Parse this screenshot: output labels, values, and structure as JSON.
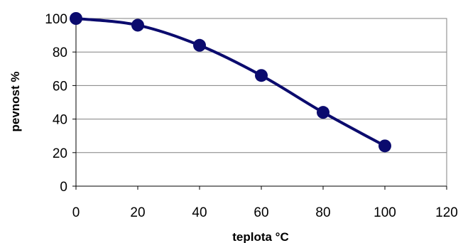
{
  "chart_data": {
    "type": "line",
    "title": "",
    "xlabel": "teplota °C",
    "ylabel": "pevnost  %",
    "xlim": [
      0,
      120
    ],
    "ylim": [
      0,
      100
    ],
    "x_ticks": [
      0,
      20,
      40,
      60,
      80,
      100,
      120
    ],
    "y_ticks": [
      0,
      20,
      40,
      60,
      80,
      100
    ],
    "grid": "horizontal",
    "legend": "none",
    "series": [
      {
        "x": [
          0,
          20,
          40,
          60,
          80,
          100
        ],
        "y": [
          100,
          96,
          84,
          66,
          44,
          24
        ],
        "color": "#0b0b6e",
        "marker": "circle",
        "smooth": true
      }
    ]
  }
}
